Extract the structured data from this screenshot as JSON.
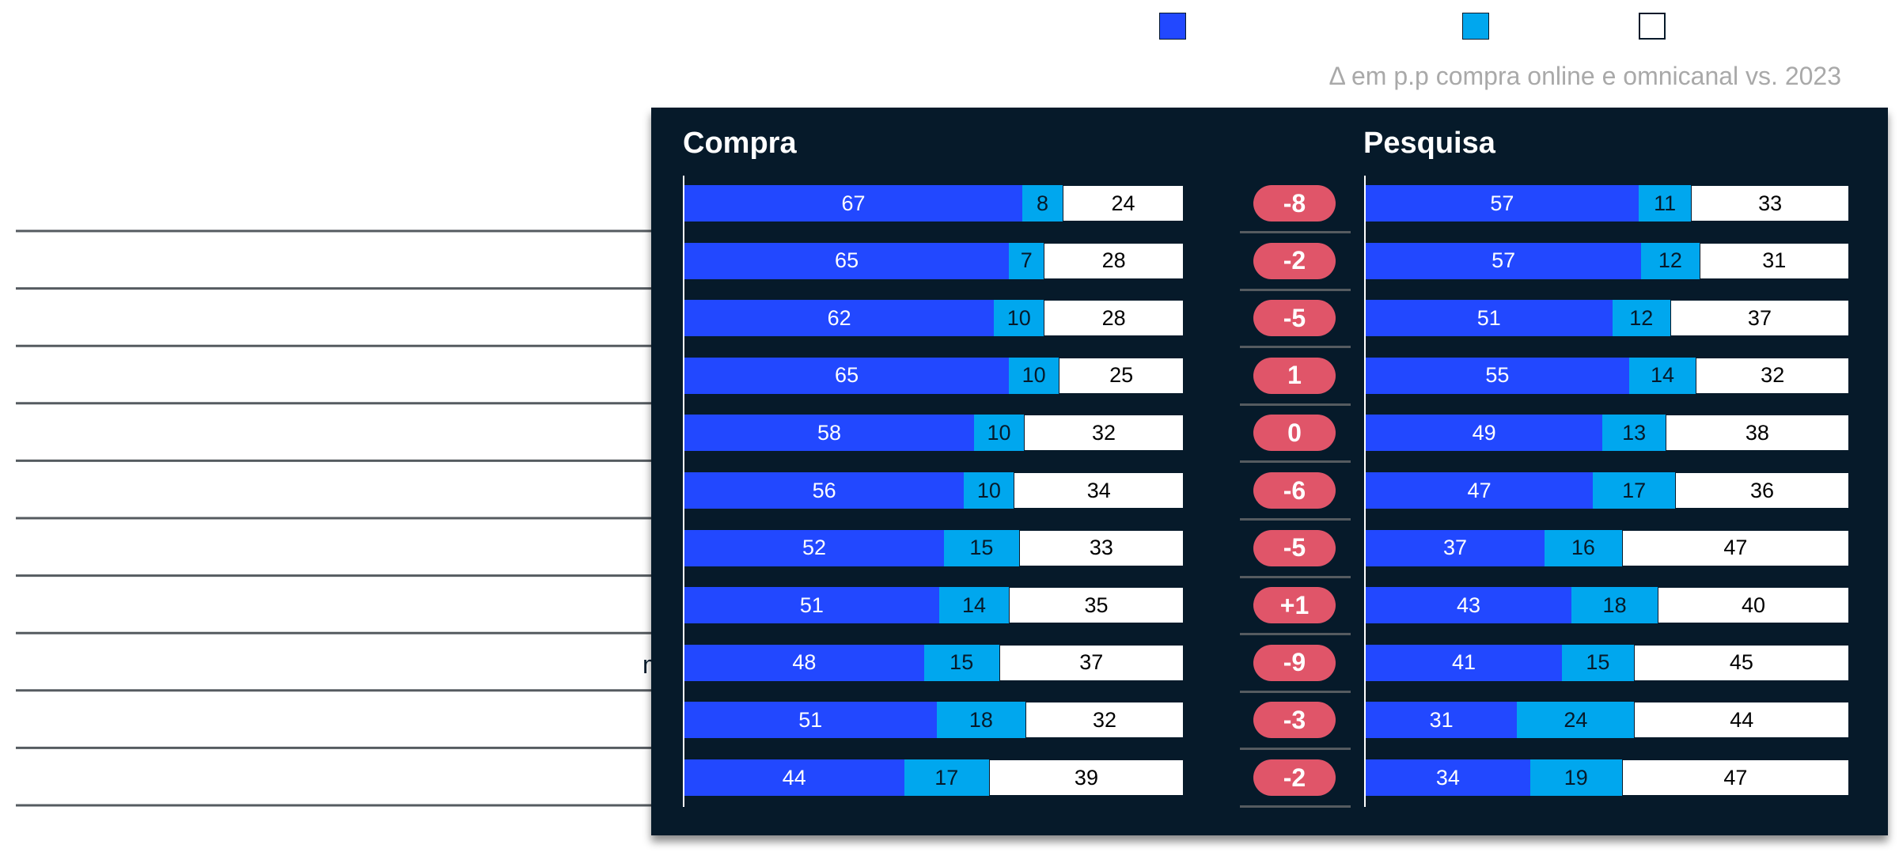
{
  "colors": {
    "series_1": "#2248ff",
    "series_2": "#00a7ee",
    "series_3": "#ffffff",
    "panel_background": "#061a2a",
    "delta_pill": "#e05569",
    "note_text": "#a9a9a9"
  },
  "legend": {
    "labels": [
      "",
      "",
      ""
    ]
  },
  "note": "Δ em p.p compra online e omnicanal vs. 2023",
  "stray_label": "m",
  "chart_data": [
    {
      "type": "bar",
      "orientation": "horizontal",
      "stacked": "100%",
      "title": "Compra",
      "categories": [
        "",
        "",
        "",
        "",
        "",
        "",
        "",
        "",
        "",
        "",
        ""
      ],
      "series": [
        {
          "values": [
            67,
            65,
            62,
            65,
            58,
            56,
            52,
            51,
            48,
            51,
            44
          ]
        },
        {
          "values": [
            8,
            7,
            10,
            10,
            10,
            10,
            15,
            14,
            15,
            18,
            17
          ]
        },
        {
          "values": [
            24,
            28,
            28,
            25,
            32,
            34,
            33,
            35,
            37,
            32,
            39
          ]
        }
      ],
      "deltas": [
        "-8",
        "-2",
        "-5",
        "1",
        "0",
        "-6",
        "-5",
        "+1",
        "-9",
        "-3",
        "-2"
      ]
    },
    {
      "type": "bar",
      "orientation": "horizontal",
      "stacked": "100%",
      "title": "Pesquisa",
      "categories": [
        "",
        "",
        "",
        "",
        "",
        "",
        "",
        "",
        "",
        "",
        ""
      ],
      "series": [
        {
          "values": [
            57,
            57,
            51,
            55,
            49,
            47,
            37,
            43,
            41,
            31,
            34
          ]
        },
        {
          "values": [
            11,
            12,
            12,
            14,
            13,
            17,
            16,
            18,
            15,
            24,
            19
          ]
        },
        {
          "values": [
            33,
            31,
            37,
            32,
            38,
            36,
            47,
            40,
            45,
            44,
            47
          ]
        }
      ]
    }
  ]
}
